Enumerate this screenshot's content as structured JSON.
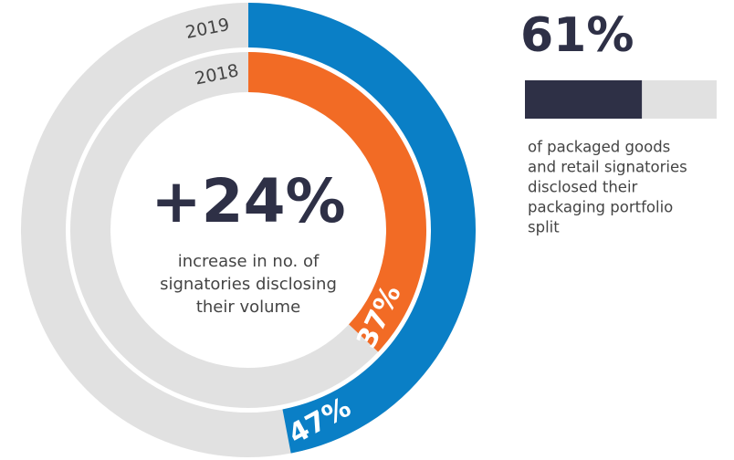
{
  "chart_data": [
    {
      "type": "donut",
      "title": "+24%",
      "subtitle": [
        "increase in no. of",
        "signatories disclosing",
        "their volume"
      ],
      "ylim": [
        0,
        100
      ],
      "track_color": "#e1e1e1",
      "series": [
        {
          "name": "2019",
          "color": "#0a7fc6",
          "values": [
            47
          ],
          "value_labels": [
            "47%"
          ]
        },
        {
          "name": "2018",
          "color": "#f26b25",
          "values": [
            37
          ],
          "value_labels": [
            "37%"
          ]
        }
      ]
    },
    {
      "type": "progress",
      "value": 61,
      "value_label": "61%",
      "ylim": [
        0,
        100
      ],
      "color": "#2e3046",
      "track_color": "#e1e1e1",
      "caption": [
        "of packaged goods",
        "and retail signatories",
        "disclosed their",
        "packaging portfolio",
        "split"
      ]
    }
  ]
}
